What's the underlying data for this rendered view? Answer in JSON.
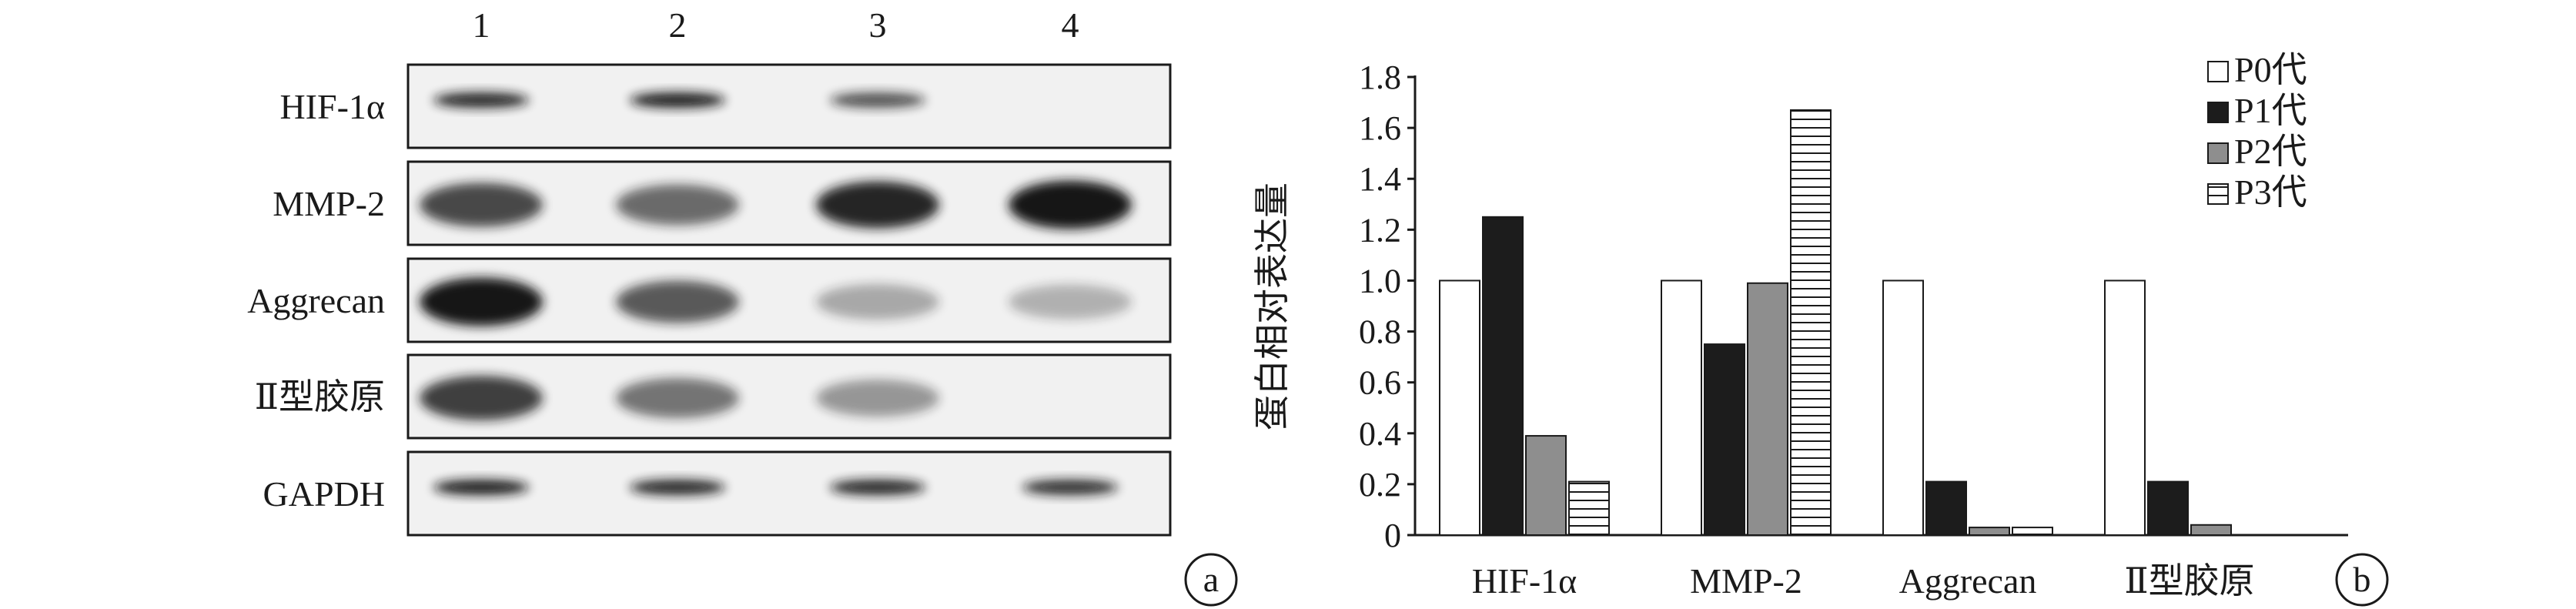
{
  "panel_a": {
    "letter": "a",
    "lanes": [
      "1",
      "2",
      "3",
      "4"
    ],
    "rows": [
      {
        "label": "HIF-1α",
        "intensity": [
          0.85,
          0.9,
          0.6,
          0.0
        ]
      },
      {
        "label": "MMP-2",
        "intensity": [
          0.65,
          0.45,
          0.85,
          0.95
        ]
      },
      {
        "label": "Aggrecan",
        "intensity": [
          0.95,
          0.55,
          0.1,
          0.05
        ]
      },
      {
        "label": "Ⅱ型胶原",
        "intensity": [
          0.7,
          0.4,
          0.2,
          0.0
        ]
      },
      {
        "label": "GAPDH",
        "intensity": [
          0.9,
          0.85,
          0.85,
          0.8
        ]
      }
    ]
  },
  "panel_b": {
    "letter": "b"
  },
  "chart_data": {
    "type": "bar",
    "categories": [
      "HIF-1α",
      "MMP-2",
      "Aggrecan",
      "Ⅱ型胶原"
    ],
    "series": [
      {
        "name": "P0代",
        "values": [
          1.0,
          1.0,
          1.0,
          1.0
        ],
        "fill": "white"
      },
      {
        "name": "P1代",
        "values": [
          1.25,
          0.75,
          0.21,
          0.21
        ],
        "fill": "black"
      },
      {
        "name": "P2代",
        "values": [
          0.39,
          0.99,
          0.03,
          0.04
        ],
        "fill": "gray"
      },
      {
        "name": "P3代",
        "values": [
          0.21,
          1.67,
          0.03,
          0.0
        ],
        "fill": "hstripes"
      }
    ],
    "title": "",
    "xlabel": "",
    "ylabel": "蛋白相对表达量",
    "ylim": [
      0,
      1.8
    ],
    "yticks": [
      "0",
      "0.2",
      "0.4",
      "0.6",
      "0.8",
      "1.0",
      "1.2",
      "1.4",
      "1.6",
      "1.8"
    ],
    "legend_position": "top-right",
    "grid": false
  },
  "colors": {
    "black_bar": "#1c1c1c",
    "gray_bar": "#8e8e8e",
    "stroke": "#1a1a1a",
    "blot_bg": "#f1f1f1"
  }
}
